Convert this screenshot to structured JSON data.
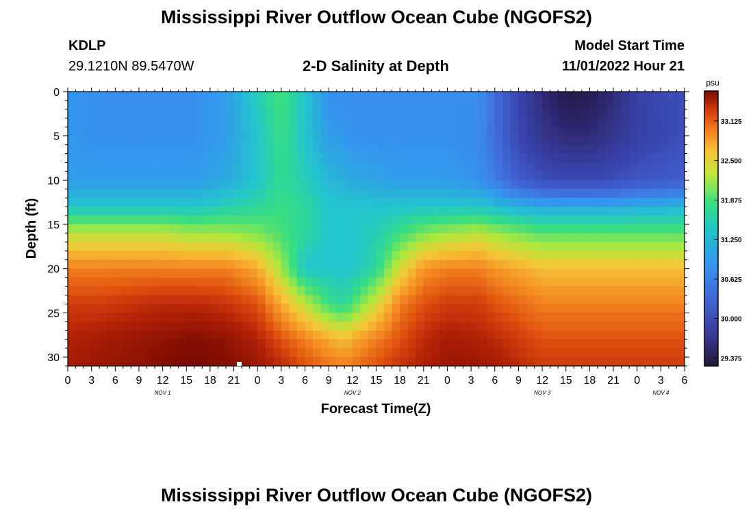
{
  "page_title": "Mississippi River Outflow Ocean Cube (NGOFS2)",
  "station": {
    "id": "KDLP",
    "location": "29.1210N  89.5470W"
  },
  "model_start": {
    "label": "Model Start Time",
    "value": "11/01/2022 Hour 21"
  },
  "footer_title": "Mississippi River Outflow Ocean Cube (NGOFS2)",
  "colors": {
    "background": "#ffffff",
    "axis": "#000000"
  },
  "chart_data": {
    "type": "heatmap",
    "title": "2-D Salinity at Depth",
    "xlabel": "Forecast Time(Z)",
    "ylabel": "Depth (ft)",
    "x_unit": "forecast hour from 2022-11-01 00Z",
    "xlim": [
      0,
      78
    ],
    "ylim": [
      31,
      0
    ],
    "y_ticks": [
      0,
      5,
      10,
      15,
      20,
      25,
      30
    ],
    "x_tick_labels": [
      "0",
      "3",
      "6",
      "9",
      "12",
      "15",
      "18",
      "21",
      "0",
      "3",
      "6",
      "9",
      "12",
      "15",
      "18",
      "21",
      "0",
      "3",
      "6",
      "9",
      "12",
      "15",
      "18",
      "21",
      "0",
      "3",
      "6"
    ],
    "date_labels": [
      {
        "text": "NOV 1",
        "hour": 12
      },
      {
        "text": "NOV 2",
        "hour": 36
      },
      {
        "text": "NOV 3",
        "hour": 60
      },
      {
        "text": "NOV 4",
        "hour": 75
      }
    ],
    "colorbar": {
      "label": "psu",
      "ticks": [
        "33.125",
        "32.500",
        "31.875",
        "31.250",
        "30.625",
        "30.000",
        "29.375"
      ],
      "tick_values": [
        33.125,
        32.5,
        31.875,
        31.25,
        30.625,
        30.0,
        29.375
      ],
      "range": [
        29.25,
        33.6
      ]
    },
    "grid": false,
    "profile_times": [
      0,
      4,
      8,
      12,
      16,
      20,
      24,
      27,
      30,
      33,
      35,
      36,
      39,
      42,
      45,
      48,
      52,
      54,
      57,
      60,
      63,
      66,
      69,
      72,
      75,
      78
    ],
    "profile_depths": [
      0,
      5,
      10,
      13,
      16,
      20,
      24,
      28,
      31
    ],
    "salinity_profiles": [
      [
        31.25,
        31.25,
        31.3,
        31.6,
        32.3,
        32.9,
        33.2,
        33.35,
        33.4
      ],
      [
        31.2,
        31.2,
        31.3,
        31.6,
        32.3,
        32.9,
        33.2,
        33.4,
        33.45
      ],
      [
        31.2,
        31.2,
        31.3,
        31.6,
        32.3,
        32.9,
        33.25,
        33.45,
        33.5
      ],
      [
        31.2,
        31.2,
        31.3,
        31.6,
        32.3,
        32.9,
        33.3,
        33.5,
        33.55
      ],
      [
        31.2,
        31.2,
        31.3,
        31.6,
        32.2,
        32.9,
        33.3,
        33.55,
        33.6
      ],
      [
        31.3,
        31.3,
        31.4,
        31.7,
        32.2,
        32.9,
        33.25,
        33.5,
        33.55
      ],
      [
        31.7,
        31.6,
        31.6,
        31.8,
        32.1,
        32.7,
        33.1,
        33.35,
        33.45
      ],
      [
        31.95,
        31.9,
        31.85,
        31.9,
        31.95,
        32.2,
        32.7,
        33.1,
        33.3
      ],
      [
        31.6,
        31.6,
        31.7,
        31.8,
        31.8,
        31.6,
        32.3,
        32.9,
        33.1
      ],
      [
        31.2,
        31.3,
        31.5,
        31.6,
        31.6,
        31.6,
        31.9,
        32.7,
        32.95
      ],
      [
        31.2,
        31.25,
        31.45,
        31.6,
        31.6,
        31.6,
        31.8,
        32.6,
        32.9
      ],
      [
        31.2,
        31.2,
        31.4,
        31.6,
        31.6,
        31.6,
        31.95,
        32.7,
        32.95
      ],
      [
        31.2,
        31.2,
        31.35,
        31.6,
        31.7,
        31.8,
        32.4,
        32.9,
        33.1
      ],
      [
        31.2,
        31.2,
        31.3,
        31.6,
        31.9,
        32.4,
        32.9,
        33.1,
        33.25
      ],
      [
        31.2,
        31.2,
        31.3,
        31.6,
        32.1,
        32.8,
        33.1,
        33.3,
        33.35
      ],
      [
        31.2,
        31.2,
        31.3,
        31.6,
        32.2,
        32.9,
        33.2,
        33.4,
        33.45
      ],
      [
        31.2,
        31.15,
        31.2,
        31.6,
        32.3,
        32.9,
        33.2,
        33.35,
        33.45
      ],
      [
        30.9,
        30.9,
        31.05,
        31.55,
        32.2,
        32.8,
        33.1,
        33.3,
        33.4
      ],
      [
        30.4,
        30.4,
        30.7,
        31.45,
        32.1,
        32.7,
        33.0,
        33.2,
        33.3
      ],
      [
        29.9,
        30.1,
        30.5,
        31.4,
        32.0,
        32.6,
        32.9,
        33.1,
        33.2
      ],
      [
        29.4,
        29.9,
        30.45,
        31.4,
        32.0,
        32.6,
        32.9,
        33.1,
        33.2
      ],
      [
        29.5,
        29.9,
        30.45,
        31.4,
        32.0,
        32.6,
        32.9,
        33.1,
        33.2
      ],
      [
        29.9,
        30.1,
        30.5,
        31.4,
        32.0,
        32.6,
        32.9,
        33.1,
        33.2
      ],
      [
        30.3,
        30.3,
        30.6,
        31.45,
        32.0,
        32.6,
        32.9,
        33.1,
        33.2
      ],
      [
        30.45,
        30.4,
        30.65,
        31.45,
        32.0,
        32.6,
        32.9,
        33.1,
        33.2
      ],
      [
        30.5,
        30.5,
        30.7,
        31.5,
        32.0,
        32.6,
        32.9,
        33.1,
        33.2
      ]
    ]
  }
}
